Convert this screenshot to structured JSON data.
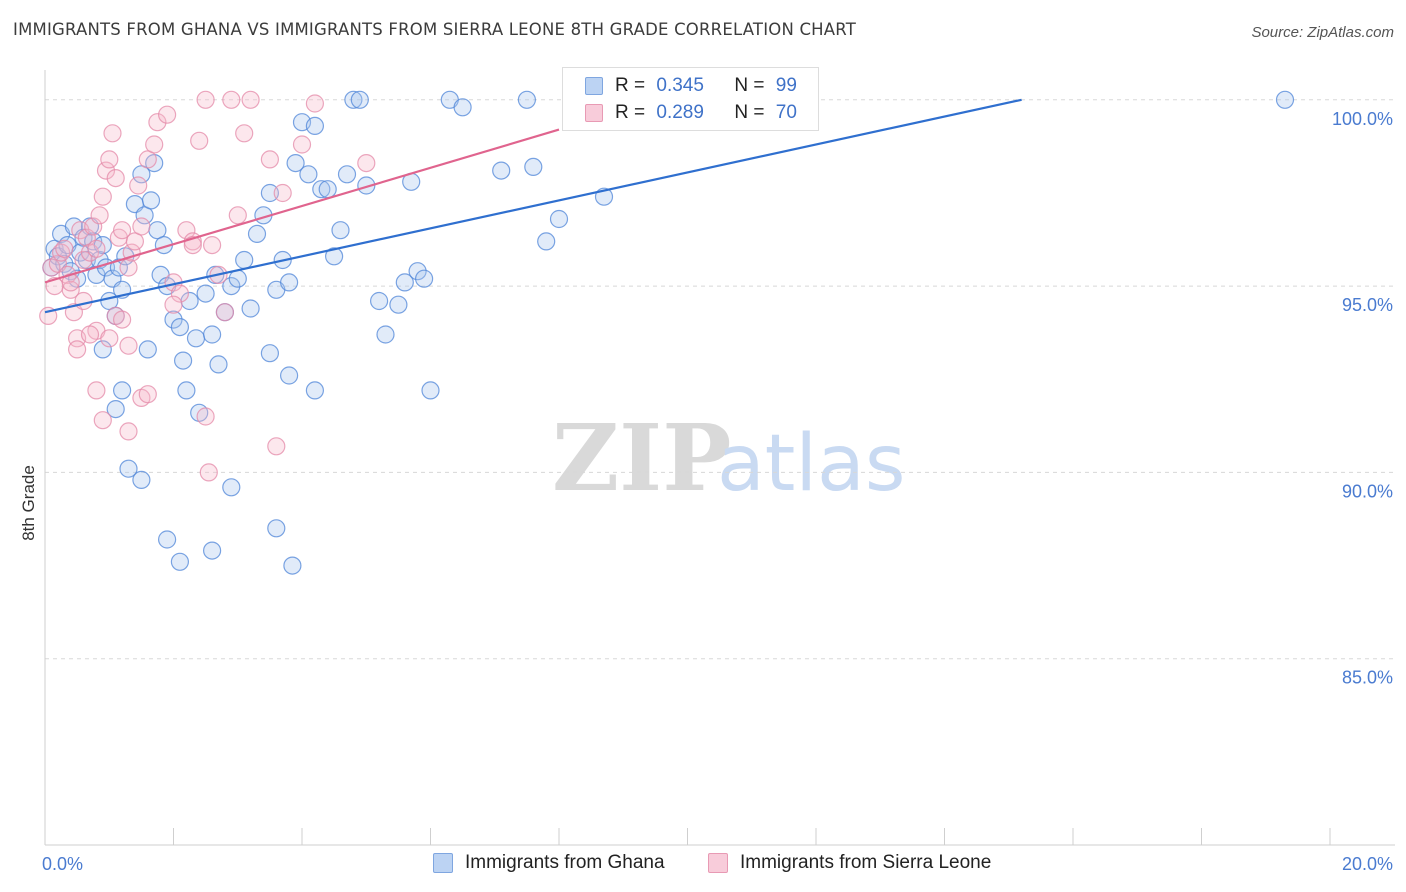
{
  "header": {
    "title": "IMMIGRANTS FROM GHANA VS IMMIGRANTS FROM SIERRA LEONE 8TH GRADE CORRELATION CHART",
    "source": "Source: ZipAtlas.com"
  },
  "watermark": {
    "zip": "ZIP",
    "atlas": "atlas"
  },
  "legend": {
    "series1": {
      "r_label": "R =",
      "r_value": "0.345",
      "n_label": "N =",
      "n_value": "99"
    },
    "series2": {
      "r_label": "R =",
      "r_value": "0.289",
      "n_label": "N =",
      "n_value": "70"
    }
  },
  "bottom_legend": {
    "series1": "Immigrants from Ghana",
    "series2": "Immigrants from Sierra Leone"
  },
  "colors": {
    "blue_fill": "#a9c6ef",
    "blue_stroke": "#4f86d8",
    "blue_line": "#2f6fcf",
    "pink_fill": "#f5b9cc",
    "pink_stroke": "#e48aa8",
    "pink_line": "#e0648e",
    "grid": "#d8d8d8",
    "tick_text": "#4a7bd0"
  },
  "chart_data": {
    "type": "scatter",
    "title": "IMMIGRANTS FROM GHANA VS IMMIGRANTS FROM SIERRA LEONE 8TH GRADE CORRELATION CHART",
    "xlabel": "",
    "ylabel": "8th Grade",
    "xlim": [
      0,
      20
    ],
    "ylim": [
      80,
      100.8
    ],
    "x_tick_labels": [
      "0.0%",
      "20.0%"
    ],
    "y_ticks": [
      85,
      90,
      95,
      100
    ],
    "y_tick_labels": [
      "85.0%",
      "90.0%",
      "95.0%",
      "100.0%"
    ],
    "series": [
      {
        "name": "Immigrants from Ghana",
        "R": 0.345,
        "N": 99,
        "trend": {
          "x0": 0.0,
          "y0": 94.3,
          "x1": 15.2,
          "y1": 100.0
        },
        "points": [
          [
            0.1,
            95.5
          ],
          [
            0.15,
            96.0
          ],
          [
            0.2,
            95.8
          ],
          [
            0.25,
            96.4
          ],
          [
            0.3,
            95.6
          ],
          [
            0.35,
            96.1
          ],
          [
            0.4,
            95.4
          ],
          [
            0.45,
            96.6
          ],
          [
            0.5,
            95.2
          ],
          [
            0.55,
            95.9
          ],
          [
            0.6,
            96.3
          ],
          [
            0.65,
            95.7
          ],
          [
            0.7,
            96.6
          ],
          [
            0.75,
            96.2
          ],
          [
            0.8,
            95.3
          ],
          [
            0.85,
            95.7
          ],
          [
            0.9,
            96.1
          ],
          [
            0.95,
            95.5
          ],
          [
            1.0,
            94.6
          ],
          [
            1.05,
            95.2
          ],
          [
            1.1,
            94.2
          ],
          [
            1.15,
            95.5
          ],
          [
            1.2,
            94.9
          ],
          [
            1.25,
            95.8
          ],
          [
            1.4,
            97.2
          ],
          [
            1.5,
            98.0
          ],
          [
            1.55,
            96.9
          ],
          [
            1.65,
            97.3
          ],
          [
            1.7,
            98.3
          ],
          [
            1.75,
            96.5
          ],
          [
            1.8,
            95.3
          ],
          [
            1.85,
            96.1
          ],
          [
            1.9,
            95.0
          ],
          [
            2.0,
            94.1
          ],
          [
            2.1,
            93.9
          ],
          [
            2.15,
            93.0
          ],
          [
            2.25,
            94.6
          ],
          [
            2.35,
            93.6
          ],
          [
            2.5,
            94.8
          ],
          [
            2.6,
            93.7
          ],
          [
            2.7,
            92.9
          ],
          [
            2.8,
            94.3
          ],
          [
            2.9,
            95.0
          ],
          [
            3.0,
            95.2
          ],
          [
            3.1,
            95.7
          ],
          [
            3.2,
            94.4
          ],
          [
            3.3,
            96.4
          ],
          [
            3.4,
            96.9
          ],
          [
            3.5,
            97.5
          ],
          [
            3.6,
            94.9
          ],
          [
            3.7,
            95.7
          ],
          [
            3.8,
            95.1
          ],
          [
            3.9,
            98.3
          ],
          [
            4.0,
            99.4
          ],
          [
            4.1,
            98.0
          ],
          [
            4.2,
            99.3
          ],
          [
            4.3,
            97.6
          ],
          [
            4.4,
            97.6
          ],
          [
            4.5,
            95.8
          ],
          [
            4.6,
            96.5
          ],
          [
            4.7,
            98.0
          ],
          [
            4.8,
            100.0
          ],
          [
            4.9,
            100.0
          ],
          [
            5.0,
            97.7
          ],
          [
            5.2,
            94.6
          ],
          [
            5.3,
            93.7
          ],
          [
            5.5,
            94.5
          ],
          [
            5.6,
            95.1
          ],
          [
            5.7,
            97.8
          ],
          [
            5.8,
            95.4
          ],
          [
            5.9,
            95.2
          ],
          [
            6.0,
            92.2
          ],
          [
            6.3,
            100.0
          ],
          [
            6.5,
            99.8
          ],
          [
            7.1,
            98.1
          ],
          [
            7.5,
            100.0
          ],
          [
            7.6,
            98.2
          ],
          [
            7.8,
            96.2
          ],
          [
            8.0,
            96.8
          ],
          [
            8.7,
            97.4
          ],
          [
            19.3,
            100.0
          ],
          [
            0.9,
            93.3
          ],
          [
            1.1,
            91.7
          ],
          [
            1.2,
            92.2
          ],
          [
            1.3,
            90.1
          ],
          [
            1.5,
            89.8
          ],
          [
            1.9,
            88.2
          ],
          [
            2.1,
            87.6
          ],
          [
            2.4,
            91.6
          ],
          [
            2.6,
            87.9
          ],
          [
            2.9,
            89.6
          ],
          [
            3.8,
            92.6
          ],
          [
            3.6,
            88.5
          ],
          [
            3.85,
            87.5
          ],
          [
            4.2,
            92.2
          ],
          [
            2.2,
            92.2
          ],
          [
            1.6,
            93.3
          ],
          [
            2.65,
            95.3
          ],
          [
            3.5,
            93.2
          ]
        ]
      },
      {
        "name": "Immigrants from Sierra Leone",
        "R": 0.289,
        "N": 70,
        "trend": {
          "x0": 0.0,
          "y0": 95.1,
          "x1": 8.0,
          "y1": 99.2
        },
        "points": [
          [
            0.05,
            94.2
          ],
          [
            0.1,
            95.5
          ],
          [
            0.15,
            95.0
          ],
          [
            0.2,
            95.6
          ],
          [
            0.25,
            95.9
          ],
          [
            0.3,
            96.0
          ],
          [
            0.35,
            95.3
          ],
          [
            0.4,
            94.9
          ],
          [
            0.45,
            94.3
          ],
          [
            0.5,
            93.6
          ],
          [
            0.55,
            96.5
          ],
          [
            0.6,
            95.7
          ],
          [
            0.65,
            96.3
          ],
          [
            0.7,
            95.9
          ],
          [
            0.75,
            96.6
          ],
          [
            0.8,
            96.0
          ],
          [
            0.85,
            96.9
          ],
          [
            0.9,
            97.4
          ],
          [
            0.95,
            98.1
          ],
          [
            1.0,
            98.4
          ],
          [
            1.05,
            99.1
          ],
          [
            1.1,
            97.9
          ],
          [
            1.15,
            96.3
          ],
          [
            1.2,
            96.5
          ],
          [
            1.3,
            95.5
          ],
          [
            1.35,
            95.9
          ],
          [
            1.4,
            96.2
          ],
          [
            1.45,
            97.7
          ],
          [
            1.5,
            96.6
          ],
          [
            1.6,
            98.4
          ],
          [
            1.7,
            98.8
          ],
          [
            1.75,
            99.4
          ],
          [
            1.9,
            99.6
          ],
          [
            2.0,
            95.1
          ],
          [
            2.1,
            94.8
          ],
          [
            2.2,
            96.5
          ],
          [
            2.3,
            96.2
          ],
          [
            2.4,
            98.9
          ],
          [
            2.5,
            100.0
          ],
          [
            2.6,
            96.1
          ],
          [
            2.7,
            95.3
          ],
          [
            2.8,
            94.3
          ],
          [
            2.9,
            100.0
          ],
          [
            3.0,
            96.9
          ],
          [
            3.1,
            99.1
          ],
          [
            3.2,
            100.0
          ],
          [
            3.5,
            98.4
          ],
          [
            3.7,
            97.5
          ],
          [
            4.0,
            98.8
          ],
          [
            4.2,
            99.9
          ],
          [
            5.0,
            98.3
          ],
          [
            0.4,
            95.1
          ],
          [
            0.6,
            94.6
          ],
          [
            0.8,
            93.8
          ],
          [
            1.0,
            93.6
          ],
          [
            1.1,
            94.2
          ],
          [
            1.2,
            94.1
          ],
          [
            0.8,
            92.2
          ],
          [
            0.9,
            91.4
          ],
          [
            1.3,
            91.1
          ],
          [
            1.5,
            92.0
          ],
          [
            2.5,
            91.5
          ],
          [
            2.55,
            90.0
          ],
          [
            3.6,
            90.7
          ],
          [
            0.5,
            93.3
          ],
          [
            1.6,
            92.1
          ],
          [
            2.3,
            96.1
          ],
          [
            0.7,
            93.7
          ],
          [
            1.3,
            93.4
          ],
          [
            2.0,
            94.5
          ]
        ]
      }
    ]
  }
}
